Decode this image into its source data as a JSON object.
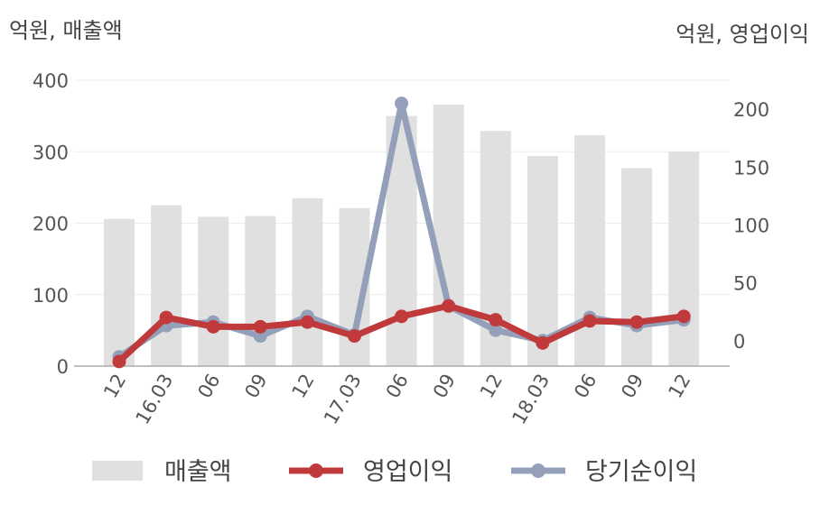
{
  "chart_data": {
    "type": "bar+line",
    "unit_left": "억원, 매출액",
    "unit_right": "억원, 영업이익",
    "categories": [
      "12",
      "16.03",
      "06",
      "09",
      "12",
      "17.03",
      "06",
      "09",
      "12",
      "18.03",
      "06",
      "09",
      "12"
    ],
    "y_left": {
      "ticks": [
        "0",
        "100",
        "200",
        "300",
        "400"
      ],
      "range": [
        0,
        400
      ]
    },
    "y_right": {
      "ticks": [
        "0",
        "50",
        "100",
        "150",
        "200"
      ],
      "range": [
        -22,
        225
      ]
    },
    "series": [
      {
        "name": "매출액",
        "kind": "bar",
        "axis": "left",
        "color": "#e0e0e0",
        "values": [
          206,
          225,
          209,
          210,
          235,
          221,
          350,
          366,
          329,
          294,
          323,
          277,
          300
        ]
      },
      {
        "name": "영업이익",
        "kind": "line",
        "axis": "right",
        "color": "#c0393b",
        "values": [
          -18,
          20,
          12,
          12,
          16,
          4,
          21,
          30,
          18,
          -2,
          17,
          16,
          21
        ]
      },
      {
        "name": "당기순이익",
        "kind": "line",
        "axis": "right",
        "color": "#94a0ba",
        "values": [
          -14,
          13,
          16,
          4,
          21,
          5,
          205,
          30,
          9,
          0,
          20,
          13,
          18
        ]
      }
    ],
    "grid": true,
    "legend": "bottom"
  }
}
